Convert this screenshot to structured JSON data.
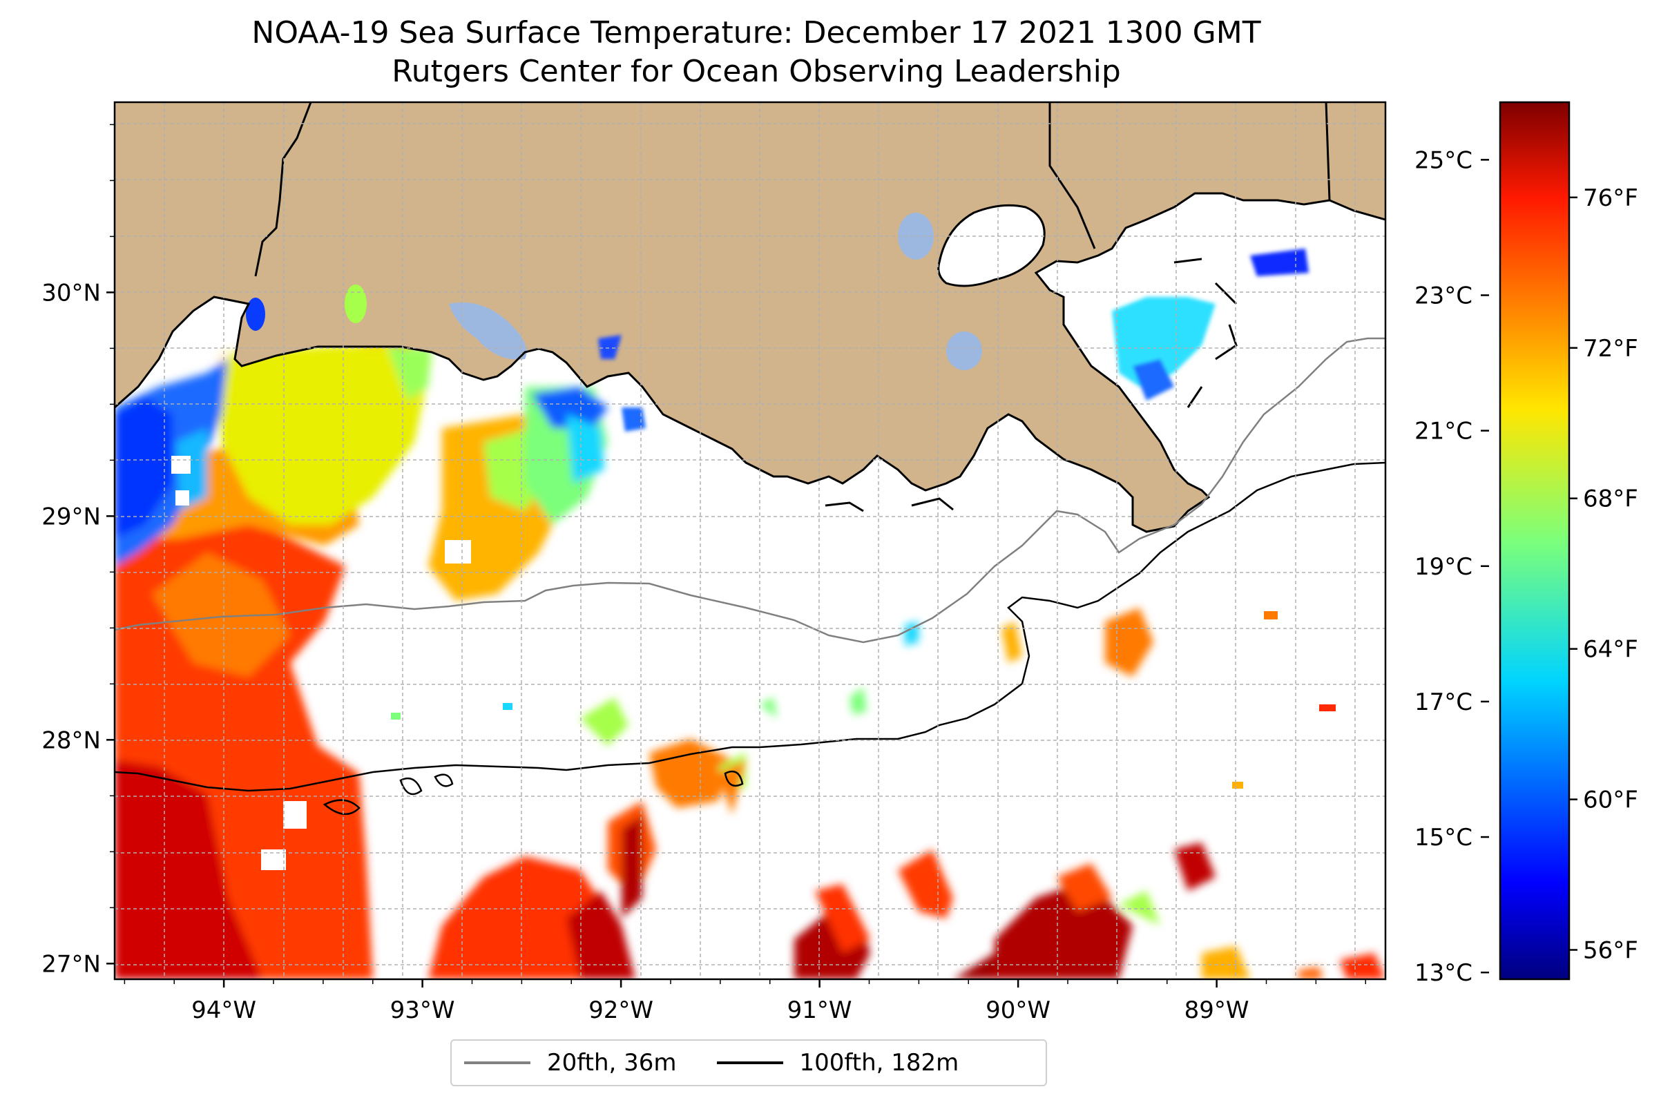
{
  "title": "NOAA-19 Sea Surface Temperature: December 17 2021 1300 GMT",
  "subtitle": "Rutgers Center for Ocean Observing Leadership",
  "colors": {
    "land": "#d2b48c",
    "lakes": "#9db8e0",
    "ocean_no_data": "#ffffff",
    "isobath_20fth": "#808080",
    "isobath_100fth": "#000000",
    "coastline": "#000000",
    "grid": "#b0b0b0"
  },
  "map": {
    "lon_range": [
      -94.55,
      -88.15
    ],
    "lat_range": [
      26.93,
      30.85
    ],
    "lon_ticks": [
      {
        "value": -94,
        "label": "94°W"
      },
      {
        "value": -93,
        "label": "93°W"
      },
      {
        "value": -92,
        "label": "92°W"
      },
      {
        "value": -91,
        "label": "91°W"
      },
      {
        "value": -90,
        "label": "90°W"
      },
      {
        "value": -89,
        "label": "89°W"
      }
    ],
    "lat_ticks": [
      {
        "value": 27,
        "label": "27°N"
      },
      {
        "value": 28,
        "label": "28°N"
      },
      {
        "value": 29,
        "label": "29°N"
      },
      {
        "value": 30,
        "label": "30°N"
      }
    ],
    "grid": true
  },
  "colorbar": {
    "celsius_range": [
      12.9,
      25.85
    ],
    "celsius_ticks": [
      {
        "value": 13,
        "label": "13°C"
      },
      {
        "value": 15,
        "label": "15°C"
      },
      {
        "value": 17,
        "label": "17°C"
      },
      {
        "value": 19,
        "label": "19°C"
      },
      {
        "value": 21,
        "label": "21°C"
      },
      {
        "value": 23,
        "label": "23°C"
      },
      {
        "value": 25,
        "label": "25°C"
      }
    ],
    "fahrenheit_ticks": [
      {
        "value": 56,
        "label": "56°F"
      },
      {
        "value": 60,
        "label": "60°F"
      },
      {
        "value": 64,
        "label": "64°F"
      },
      {
        "value": 68,
        "label": "68°F"
      },
      {
        "value": 72,
        "label": "72°F"
      },
      {
        "value": 76,
        "label": "76°F"
      }
    ],
    "colormap": "jet"
  },
  "legend": {
    "items": [
      {
        "label": "20fth, 36m",
        "color": "#808080"
      },
      {
        "label": "100fth, 182m",
        "color": "#000000"
      }
    ]
  }
}
